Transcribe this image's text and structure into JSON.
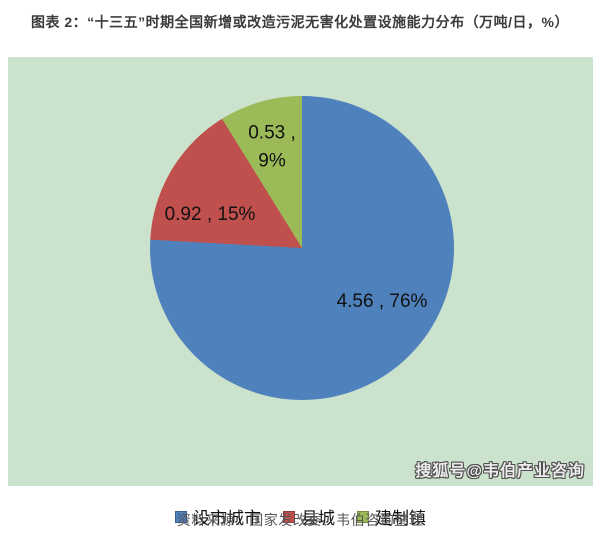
{
  "title": {
    "text": "图表 2：“十三五”时期全国新增或改造污泥无害化处置设施能力分布（万吨/日，%）"
  },
  "chart_data": {
    "type": "pie",
    "title": "“十三五”时期全国新增或改造污泥无害化处置设施能力分布",
    "unit": "万吨/日，%",
    "start_angle_deg": 0,
    "direction": "clockwise",
    "legend_position": "bottom",
    "background_color": "#cbe3cc",
    "slices": [
      {
        "name": "设市城市",
        "value": 4.56,
        "pct": 76,
        "color": "#4f81bd",
        "label": "4.56 , 76%"
      },
      {
        "name": "县城",
        "value": 0.92,
        "pct": 15,
        "color": "#c0504d",
        "label": "0.92 , 15%"
      },
      {
        "name": "建制镇",
        "value": 0.53,
        "pct": 9,
        "color": "#9bbb59",
        "label": "0.53 ,\n9%"
      }
    ]
  },
  "watermark": {
    "text": "搜狐号@韦伯产业咨询"
  },
  "source": {
    "text": "资料来源：国家发改委、韦伯咨询整理"
  }
}
